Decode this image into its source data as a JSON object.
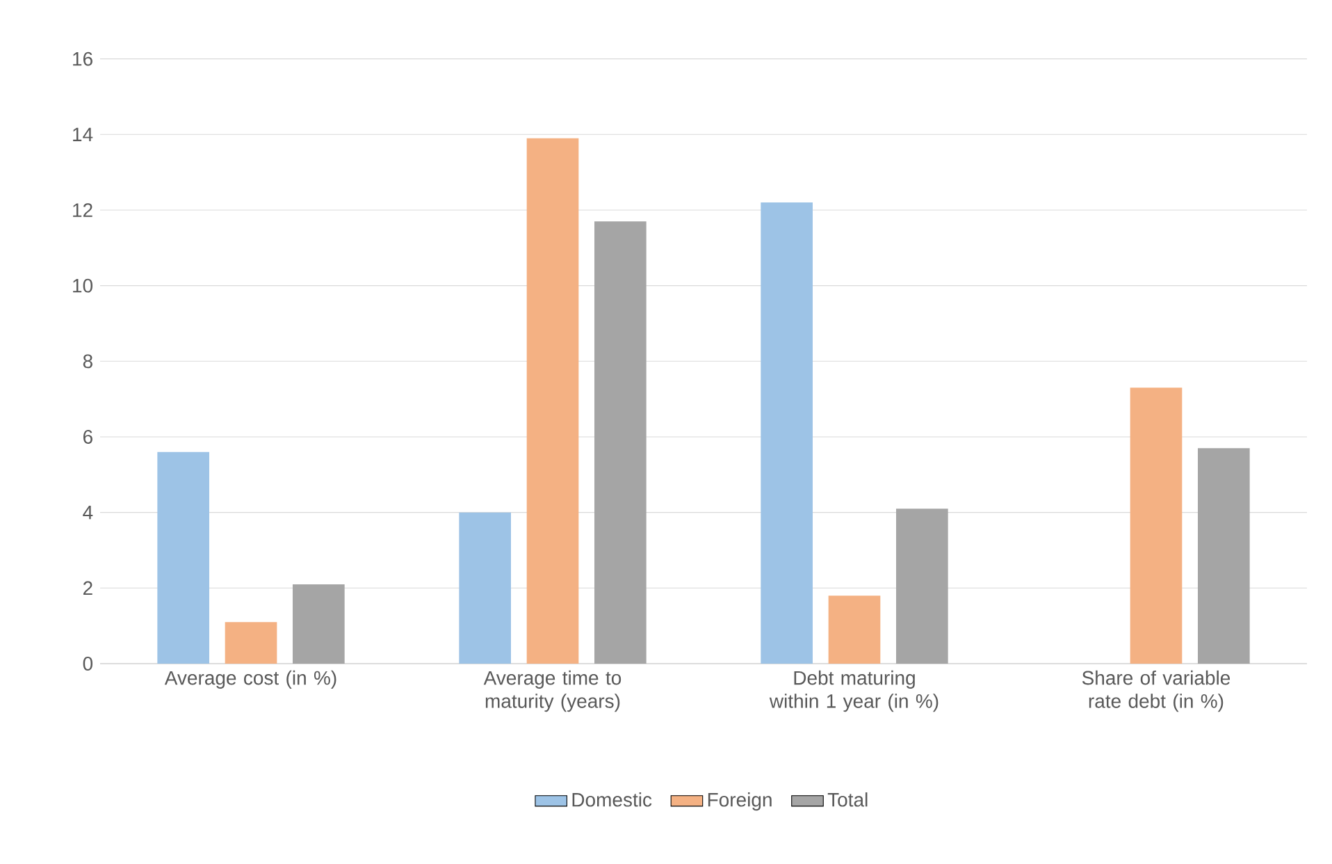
{
  "chart_data": {
    "type": "bar",
    "categories": [
      "Average cost (in %)",
      "Average time to maturity (years)",
      "Debt maturing within 1 year (in %)",
      "Share of variable rate debt (in %)"
    ],
    "series": [
      {
        "name": "Domestic",
        "color": "#9dc3e6",
        "values": [
          5.6,
          4.0,
          12.2,
          null
        ]
      },
      {
        "name": "Foreign",
        "color": "#f4b183",
        "values": [
          1.1,
          13.9,
          1.8,
          7.3
        ]
      },
      {
        "name": "Total",
        "color": "#a5a5a5",
        "values": [
          2.1,
          11.7,
          4.1,
          5.7
        ]
      }
    ],
    "ylim": [
      0,
      16
    ],
    "yticks": [
      0,
      2,
      4,
      6,
      8,
      10,
      12,
      14,
      16
    ],
    "grid": "y",
    "legend": "bottom"
  }
}
